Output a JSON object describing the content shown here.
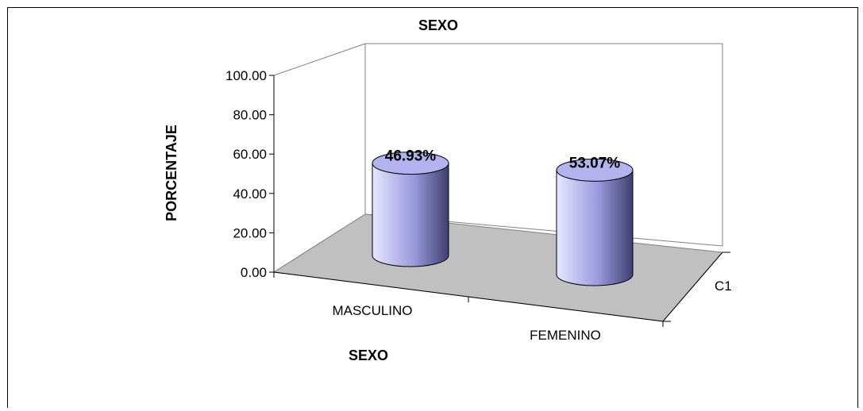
{
  "chart_data": {
    "type": "bar",
    "title": "SEXO",
    "xlabel": "SEXO",
    "ylabel": "PORCENTAJE",
    "categories": [
      "MASCULINO",
      "FEMENINO"
    ],
    "series": [
      {
        "name": "C1",
        "values": [
          46.93,
          53.07
        ]
      }
    ],
    "data_labels": [
      "46.93%",
      "53.07%"
    ],
    "y_ticks": [
      "0.00",
      "20.00",
      "40.00",
      "60.00",
      "80.00",
      "100.00"
    ],
    "ylim": [
      0,
      100
    ],
    "depth_label": "C1",
    "grid": false,
    "legend": "none",
    "colors": {
      "bar_light": "#e6e6ff",
      "bar_mid": "#9999dd",
      "bar_dark": "#4d4d80",
      "bar_top": "#b3b3f0",
      "floor": "#c0c0c0"
    }
  }
}
